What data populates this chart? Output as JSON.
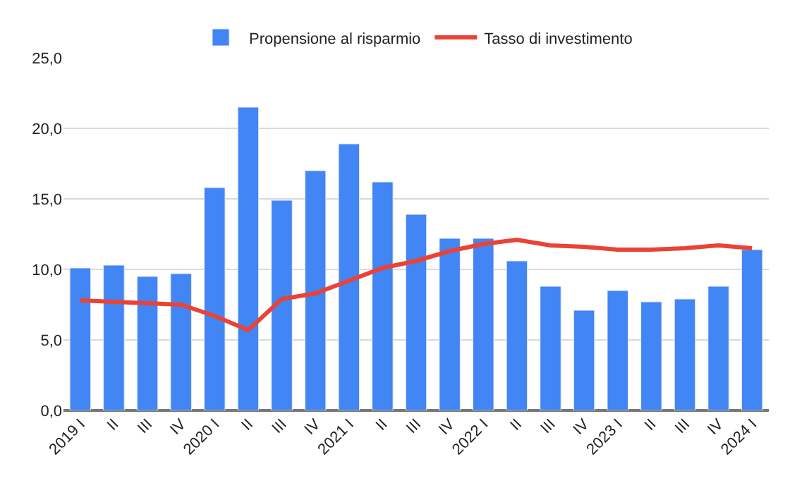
{
  "chart_data": {
    "type": "bar",
    "categories": [
      "2019 I",
      "II",
      "III",
      "IV",
      "2020 I",
      "II",
      "III",
      "IV",
      "2021 I",
      "II",
      "III",
      "IV",
      "2022 I",
      "II",
      "III",
      "IV",
      "2023 I",
      "II",
      "III",
      "IV",
      "2024 I"
    ],
    "series": [
      {
        "name": "Propensione al risparmio",
        "color": "#4285f4",
        "values": [
          10.1,
          10.3,
          9.5,
          9.7,
          15.8,
          21.5,
          14.9,
          17.0,
          18.9,
          16.2,
          13.9,
          12.2,
          12.2,
          10.6,
          8.8,
          7.1,
          8.5,
          7.7,
          7.9,
          8.8,
          11.4
        ]
      },
      {
        "name": "Tasso di investimento",
        "type": "line",
        "color": "#ea4335",
        "values": [
          7.8,
          7.7,
          7.6,
          7.5,
          6.7,
          5.7,
          7.9,
          8.3,
          9.2,
          10.1,
          10.6,
          11.3,
          11.8,
          12.1,
          11.7,
          11.6,
          11.4,
          11.4,
          11.5,
          11.7,
          11.5
        ]
      }
    ],
    "ylim": [
      0,
      25
    ],
    "yticks": [
      {
        "value": 0,
        "label": "0,0"
      },
      {
        "value": 5,
        "label": "5,0"
      },
      {
        "value": 10,
        "label": "10,0"
      },
      {
        "value": 15,
        "label": "15,0"
      },
      {
        "value": 20,
        "label": "20,0"
      },
      {
        "value": 25,
        "label": "25,0"
      }
    ],
    "grid": "y",
    "legend": "top",
    "marker": "none"
  }
}
